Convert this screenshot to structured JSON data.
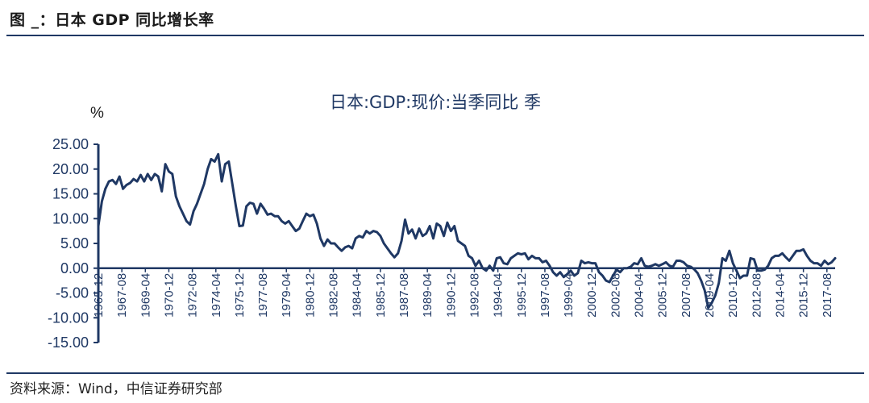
{
  "header": {
    "title": "图 _：日本 GDP 同比增长率"
  },
  "footer": {
    "source": "资料来源：Wind，中信证券研究部"
  },
  "colors": {
    "line": "#1f3864",
    "axis": "#1f3864",
    "rule": "#1f3864"
  },
  "chart_data": {
    "type": "line",
    "title": "日本:GDP:现价:当季同比 季",
    "ylabel": "%",
    "xlabel": "",
    "ylim": [
      -15,
      25
    ],
    "y_ticks": [
      "25.00",
      "20.00",
      "15.00",
      "10.00",
      "5.00",
      "0.00",
      "-5.00",
      "-10.00",
      "-15.00"
    ],
    "x_ticks": [
      "1965-12",
      "1967-08",
      "1969-04",
      "1970-12",
      "1972-08",
      "1974-04",
      "1975-12",
      "1977-08",
      "1979-04",
      "1980-12",
      "1982-08",
      "1984-04",
      "1985-12",
      "1987-08",
      "1989-04",
      "1990-12",
      "1992-08",
      "1994-04",
      "1995-12",
      "1997-08",
      "1999-04",
      "2000-12",
      "2002-08",
      "2004-04",
      "2005-12",
      "2007-08",
      "2009-04",
      "2010-12",
      "2012-08",
      "2014-04",
      "2015-12",
      "2017-08"
    ],
    "x_range": [
      "1965-12",
      "2018-03"
    ],
    "grid": false,
    "legend": "none",
    "series": [
      {
        "points": [
          [
            "1965-12",
            8.5
          ],
          [
            "1966-03",
            13.5
          ],
          [
            "1966-06",
            16.0
          ],
          [
            "1966-09",
            17.5
          ],
          [
            "1966-12",
            17.8
          ],
          [
            "1967-03",
            17.0
          ],
          [
            "1967-06",
            18.5
          ],
          [
            "1967-09",
            16.0
          ],
          [
            "1967-12",
            16.8
          ],
          [
            "1968-03",
            17.2
          ],
          [
            "1968-06",
            18.0
          ],
          [
            "1968-09",
            17.5
          ],
          [
            "1968-12",
            18.8
          ],
          [
            "1969-03",
            17.5
          ],
          [
            "1969-06",
            19.0
          ],
          [
            "1969-09",
            17.8
          ],
          [
            "1969-12",
            19.0
          ],
          [
            "1970-03",
            18.5
          ],
          [
            "1970-06",
            15.5
          ],
          [
            "1970-09",
            21.0
          ],
          [
            "1970-12",
            19.5
          ],
          [
            "1971-03",
            19.0
          ],
          [
            "1971-06",
            14.5
          ],
          [
            "1971-09",
            12.5
          ],
          [
            "1971-12",
            11.0
          ],
          [
            "1972-03",
            9.5
          ],
          [
            "1972-06",
            8.8
          ],
          [
            "1972-09",
            11.5
          ],
          [
            "1972-12",
            13.0
          ],
          [
            "1973-03",
            15.0
          ],
          [
            "1973-06",
            17.0
          ],
          [
            "1973-09",
            20.0
          ],
          [
            "1973-12",
            22.0
          ],
          [
            "1974-03",
            21.5
          ],
          [
            "1974-06",
            23.0
          ],
          [
            "1974-09",
            17.5
          ],
          [
            "1974-12",
            21.0
          ],
          [
            "1975-03",
            21.5
          ],
          [
            "1975-06",
            17.0
          ],
          [
            "1975-09",
            12.5
          ],
          [
            "1975-12",
            8.5
          ],
          [
            "1976-03",
            8.6
          ],
          [
            "1976-06",
            12.5
          ],
          [
            "1976-09",
            13.2
          ],
          [
            "1976-12",
            13.0
          ],
          [
            "1977-03",
            11.0
          ],
          [
            "1977-06",
            13.0
          ],
          [
            "1977-09",
            12.0
          ],
          [
            "1977-12",
            10.8
          ],
          [
            "1978-03",
            11.0
          ],
          [
            "1978-06",
            10.5
          ],
          [
            "1978-09",
            10.5
          ],
          [
            "1978-12",
            9.5
          ],
          [
            "1979-03",
            9.0
          ],
          [
            "1979-06",
            9.5
          ],
          [
            "1979-09",
            8.5
          ],
          [
            "1979-12",
            7.5
          ],
          [
            "1980-03",
            8.0
          ],
          [
            "1980-06",
            9.5
          ],
          [
            "1980-09",
            11.0
          ],
          [
            "1980-12",
            10.5
          ],
          [
            "1981-03",
            10.8
          ],
          [
            "1981-06",
            9.0
          ],
          [
            "1981-09",
            6.0
          ],
          [
            "1981-12",
            4.5
          ],
          [
            "1982-03",
            5.8
          ],
          [
            "1982-06",
            5.0
          ],
          [
            "1982-09",
            5.0
          ],
          [
            "1982-12",
            4.2
          ],
          [
            "1983-03",
            3.5
          ],
          [
            "1983-06",
            4.2
          ],
          [
            "1983-09",
            4.5
          ],
          [
            "1983-12",
            4.0
          ],
          [
            "1984-03",
            6.0
          ],
          [
            "1984-06",
            6.5
          ],
          [
            "1984-09",
            6.2
          ],
          [
            "1984-12",
            7.5
          ],
          [
            "1985-03",
            7.0
          ],
          [
            "1985-06",
            7.5
          ],
          [
            "1985-09",
            7.3
          ],
          [
            "1985-12",
            6.5
          ],
          [
            "1986-03",
            5.0
          ],
          [
            "1986-06",
            4.0
          ],
          [
            "1986-09",
            3.0
          ],
          [
            "1986-12",
            2.2
          ],
          [
            "1987-03",
            3.0
          ],
          [
            "1987-06",
            5.5
          ],
          [
            "1987-09",
            9.8
          ],
          [
            "1987-12",
            7.0
          ],
          [
            "1988-03",
            7.8
          ],
          [
            "1988-06",
            6.0
          ],
          [
            "1988-09",
            8.0
          ],
          [
            "1988-12",
            6.5
          ],
          [
            "1989-03",
            7.0
          ],
          [
            "1989-06",
            8.5
          ],
          [
            "1989-09",
            6.0
          ],
          [
            "1989-12",
            9.0
          ],
          [
            "1990-03",
            8.5
          ],
          [
            "1990-06",
            6.5
          ],
          [
            "1990-09",
            9.2
          ],
          [
            "1990-12",
            7.5
          ],
          [
            "1991-03",
            8.5
          ],
          [
            "1991-06",
            5.5
          ],
          [
            "1991-09",
            5.0
          ],
          [
            "1991-12",
            4.5
          ],
          [
            "1992-03",
            2.5
          ],
          [
            "1992-06",
            2.0
          ],
          [
            "1992-09",
            0.5
          ],
          [
            "1992-12",
            1.5
          ],
          [
            "1993-03",
            0.0
          ],
          [
            "1993-06",
            -0.5
          ],
          [
            "1993-09",
            0.5
          ],
          [
            "1993-12",
            -0.5
          ],
          [
            "1994-03",
            2.0
          ],
          [
            "1994-06",
            2.2
          ],
          [
            "1994-09",
            1.0
          ],
          [
            "1994-12",
            0.8
          ],
          [
            "1995-03",
            2.0
          ],
          [
            "1995-06",
            2.5
          ],
          [
            "1995-09",
            3.0
          ],
          [
            "1995-12",
            2.8
          ],
          [
            "1996-03",
            3.0
          ],
          [
            "1996-06",
            1.8
          ],
          [
            "1996-09",
            2.5
          ],
          [
            "1996-12",
            2.0
          ],
          [
            "1997-03",
            2.0
          ],
          [
            "1997-06",
            1.2
          ],
          [
            "1997-09",
            1.5
          ],
          [
            "1997-12",
            0.5
          ],
          [
            "1998-03",
            -0.8
          ],
          [
            "1998-06",
            -1.5
          ],
          [
            "1998-09",
            -0.8
          ],
          [
            "1998-12",
            -1.8
          ],
          [
            "1999-03",
            -1.2
          ],
          [
            "1999-06",
            -0.5
          ],
          [
            "1999-09",
            -1.5
          ],
          [
            "1999-12",
            -1.0
          ],
          [
            "2000-03",
            1.5
          ],
          [
            "2000-06",
            1.0
          ],
          [
            "2000-09",
            1.2
          ],
          [
            "2000-12",
            1.0
          ],
          [
            "2001-03",
            1.0
          ],
          [
            "2001-06",
            -0.8
          ],
          [
            "2001-09",
            -1.5
          ],
          [
            "2001-12",
            -2.5
          ],
          [
            "2002-03",
            -2.8
          ],
          [
            "2002-06",
            -1.5
          ],
          [
            "2002-09",
            -0.3
          ],
          [
            "2002-12",
            -0.8
          ],
          [
            "2003-03",
            0.0
          ],
          [
            "2003-06",
            0.0
          ],
          [
            "2003-09",
            0.3
          ],
          [
            "2003-12",
            1.0
          ],
          [
            "2004-03",
            0.8
          ],
          [
            "2004-06",
            2.0
          ],
          [
            "2004-09",
            0.5
          ],
          [
            "2004-12",
            0.3
          ],
          [
            "2005-03",
            0.5
          ],
          [
            "2005-06",
            0.8
          ],
          [
            "2005-09",
            0.5
          ],
          [
            "2005-12",
            0.8
          ],
          [
            "2006-03",
            1.2
          ],
          [
            "2006-06",
            0.5
          ],
          [
            "2006-09",
            0.3
          ],
          [
            "2006-12",
            1.5
          ],
          [
            "2007-03",
            1.5
          ],
          [
            "2007-06",
            1.2
          ],
          [
            "2007-09",
            0.5
          ],
          [
            "2007-12",
            0.3
          ],
          [
            "2008-03",
            -0.2
          ],
          [
            "2008-06",
            -1.0
          ],
          [
            "2008-09",
            -2.5
          ],
          [
            "2008-12",
            -4.5
          ],
          [
            "2009-03",
            -8.0
          ],
          [
            "2009-06",
            -7.0
          ],
          [
            "2009-09",
            -5.5
          ],
          [
            "2009-12",
            -3.0
          ],
          [
            "2010-03",
            2.0
          ],
          [
            "2010-06",
            1.5
          ],
          [
            "2010-09",
            3.5
          ],
          [
            "2010-12",
            1.0
          ],
          [
            "2011-03",
            -0.5
          ],
          [
            "2011-06",
            -2.0
          ],
          [
            "2011-09",
            -1.5
          ],
          [
            "2011-12",
            -1.5
          ],
          [
            "2012-03",
            2.0
          ],
          [
            "2012-06",
            1.8
          ],
          [
            "2012-09",
            -0.5
          ],
          [
            "2012-12",
            -0.5
          ],
          [
            "2013-03",
            -0.3
          ],
          [
            "2013-06",
            0.5
          ],
          [
            "2013-09",
            2.0
          ],
          [
            "2013-12",
            2.5
          ],
          [
            "2014-03",
            2.5
          ],
          [
            "2014-06",
            3.0
          ],
          [
            "2014-09",
            2.2
          ],
          [
            "2014-12",
            1.5
          ],
          [
            "2015-03",
            2.5
          ],
          [
            "2015-06",
            3.5
          ],
          [
            "2015-09",
            3.5
          ],
          [
            "2015-12",
            3.8
          ],
          [
            "2016-03",
            2.5
          ],
          [
            "2016-06",
            1.5
          ],
          [
            "2016-09",
            1.0
          ],
          [
            "2016-12",
            1.0
          ],
          [
            "2017-03",
            0.5
          ],
          [
            "2017-06",
            1.5
          ],
          [
            "2017-09",
            0.8
          ],
          [
            "2017-12",
            1.2
          ],
          [
            "2018-03",
            2.0
          ]
        ]
      }
    ]
  }
}
